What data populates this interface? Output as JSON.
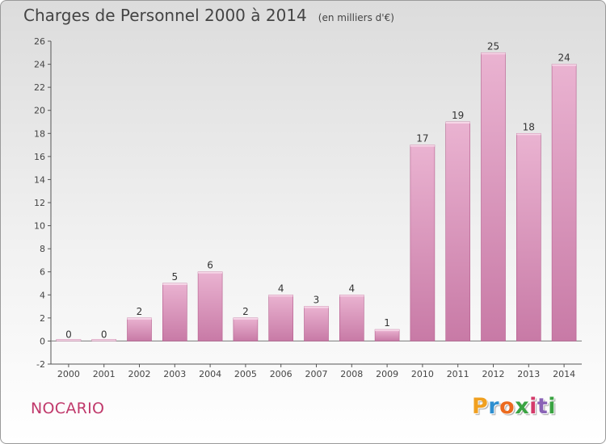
{
  "title": "Charges de Personnel 2000 à 2014",
  "subtitle": "(en milliers d'€)",
  "commune": "NOCARIO",
  "logo": {
    "letters": [
      "P",
      "r",
      "o",
      "x",
      "i",
      "t",
      "i"
    ],
    "colors": [
      "#f0a020",
      "#2f8fd0",
      "#ec6a1e",
      "#3aa342",
      "#d43a6a",
      "#8a63b6",
      "#3aa342"
    ]
  },
  "colors": {
    "bar_light": "#eab3d1",
    "bar_dark": "#c87aa6",
    "bar_side": "#b45c8c",
    "bar_top": "#f6d6e7"
  },
  "chart_data": {
    "type": "bar",
    "categories": [
      "2000",
      "2001",
      "2002",
      "2003",
      "2004",
      "2005",
      "2006",
      "2007",
      "2008",
      "2009",
      "2010",
      "2011",
      "2012",
      "2013",
      "2014"
    ],
    "values": [
      0,
      0,
      2,
      5,
      6,
      2,
      4,
      3,
      4,
      1,
      17,
      19,
      25,
      18,
      24
    ],
    "data_labels": [
      "0",
      "0",
      "2",
      "5",
      "6",
      "2",
      "4",
      "3",
      "4",
      "1",
      "17",
      "19",
      "25",
      "18",
      "24"
    ],
    "title": "Charges de Personnel 2000 à 2014",
    "ylim": [
      -2,
      26
    ],
    "yticks": [
      -2,
      0,
      2,
      4,
      6,
      8,
      10,
      12,
      14,
      16,
      18,
      20,
      22,
      24,
      26
    ],
    "grid": false,
    "legend": "none"
  }
}
